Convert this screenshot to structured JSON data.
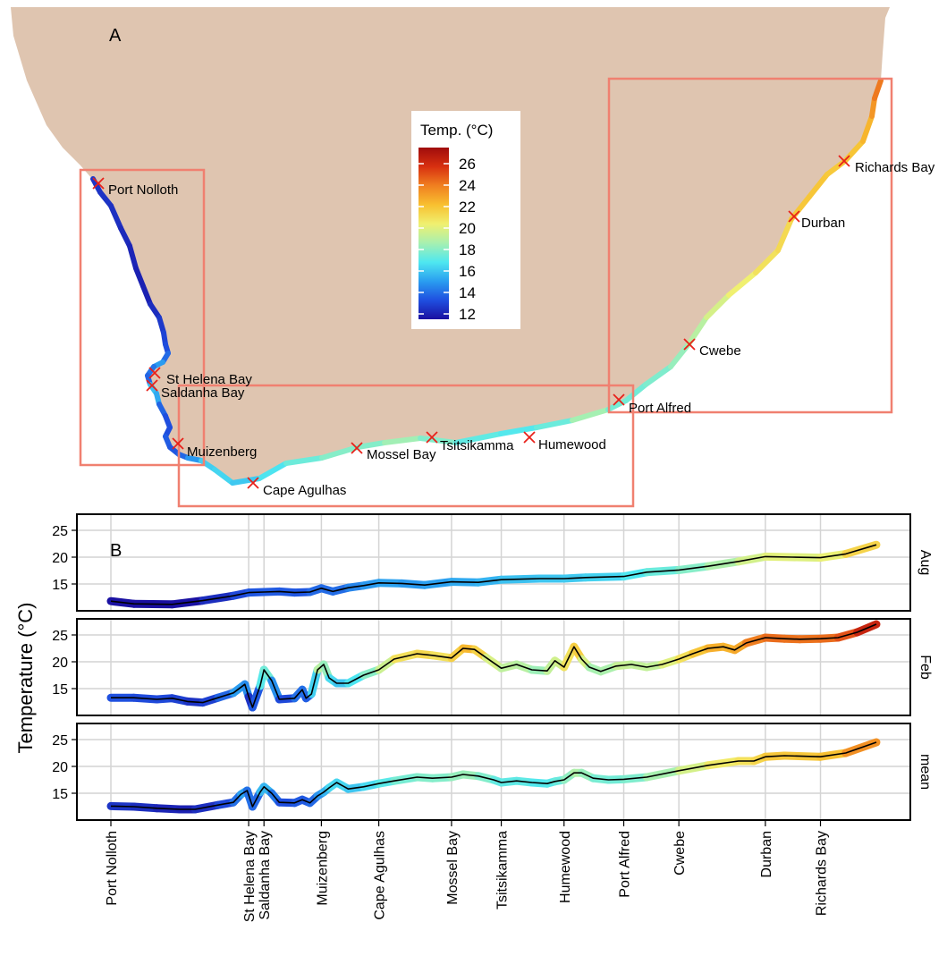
{
  "map": {
    "panel_label": "A",
    "legend": {
      "title": "Temp. (°C)",
      "ticks": [
        26,
        24,
        22,
        20,
        18,
        16,
        14,
        12
      ],
      "range": [
        11.5,
        27.5
      ],
      "colors": [
        "#1a0fa0",
        "#1f4fe0",
        "#2a9ef0",
        "#4fe8f0",
        "#a8f0b0",
        "#f0f070",
        "#f8c030",
        "#f08020",
        "#d83010",
        "#a00c0c"
      ]
    },
    "sites": [
      {
        "name": "Port Nolloth"
      },
      {
        "name": "St Helena Bay"
      },
      {
        "name": "Saldanha Bay"
      },
      {
        "name": "Muizenberg"
      },
      {
        "name": "Cape Agulhas"
      },
      {
        "name": "Mossel Bay"
      },
      {
        "name": "Tsitsikamma"
      },
      {
        "name": "Humewood"
      },
      {
        "name": "Port Alfred"
      },
      {
        "name": "Cwebe"
      },
      {
        "name": "Durban"
      },
      {
        "name": "Richards Bay"
      }
    ],
    "land_color": "#dfc5b0",
    "marker_color": "#e8201a",
    "box_color": "#f08070"
  },
  "chart_data": {
    "type": "line",
    "panel_label": "B",
    "ylabel": "Temperature (°C)",
    "yticks": [
      15,
      20,
      25
    ],
    "ylim": [
      10,
      28
    ],
    "xlim": [
      0,
      1000
    ],
    "grid": true,
    "x_ticks": [
      {
        "label": "Port Nolloth",
        "x": 0
      },
      {
        "label": "St Helena Bay",
        "x": 180
      },
      {
        "label": "Saldanha Bay",
        "x": 200
      },
      {
        "label": "Muizenberg",
        "x": 275
      },
      {
        "label": "Cape Agulhas",
        "x": 350
      },
      {
        "label": "Mossel Bay",
        "x": 445
      },
      {
        "label": "Tsitsikamma",
        "x": 510
      },
      {
        "label": "Humewood",
        "x": 592
      },
      {
        "label": "Port Alfred",
        "x": 670
      },
      {
        "label": "Cwebe",
        "x": 742
      },
      {
        "label": "Durban",
        "x": 855
      },
      {
        "label": "Richards Bay",
        "x": 927
      }
    ],
    "panels": [
      {
        "strip": "Aug",
        "x": [
          0,
          30,
          80,
          120,
          160,
          180,
          200,
          220,
          240,
          260,
          275,
          290,
          310,
          330,
          350,
          380,
          410,
          445,
          480,
          510,
          560,
          592,
          620,
          670,
          700,
          742,
          780,
          820,
          855,
          890,
          927,
          960,
          1000
        ],
        "y": [
          11.8,
          11.3,
          11.2,
          11.9,
          12.8,
          13.4,
          13.5,
          13.6,
          13.4,
          13.5,
          14.2,
          13.6,
          14.3,
          14.7,
          15.2,
          15.1,
          14.8,
          15.4,
          15.3,
          15.8,
          16.0,
          16.0,
          16.2,
          16.4,
          17.2,
          17.6,
          18.3,
          19.2,
          20.1,
          20.0,
          19.9,
          20.6,
          22.3
        ]
      },
      {
        "strip": "Feb",
        "x": [
          0,
          30,
          60,
          80,
          100,
          120,
          140,
          160,
          175,
          180,
          185,
          195,
          200,
          210,
          220,
          240,
          250,
          255,
          262,
          270,
          278,
          285,
          295,
          310,
          330,
          350,
          370,
          400,
          420,
          445,
          460,
          475,
          490,
          510,
          530,
          550,
          570,
          580,
          592,
          605,
          615,
          625,
          640,
          660,
          680,
          700,
          720,
          742,
          760,
          780,
          800,
          815,
          830,
          855,
          880,
          900,
          927,
          950,
          975,
          1000
        ],
        "y": [
          13.3,
          13.3,
          13.0,
          13.2,
          12.6,
          12.4,
          13.3,
          14.2,
          15.8,
          13.5,
          11.5,
          15.5,
          18.5,
          16.5,
          13.0,
          13.2,
          14.8,
          13.2,
          14.0,
          18.5,
          19.5,
          17.0,
          16.0,
          16.0,
          17.5,
          18.5,
          20.5,
          21.5,
          21.2,
          20.7,
          22.5,
          22.3,
          20.8,
          18.8,
          19.5,
          18.5,
          18.3,
          20.2,
          19.0,
          22.8,
          20.5,
          19.0,
          18.2,
          19.2,
          19.5,
          19.0,
          19.5,
          20.5,
          21.5,
          22.5,
          22.8,
          22.2,
          23.5,
          24.5,
          24.3,
          24.2,
          24.3,
          24.5,
          25.5,
          27.0
        ]
      },
      {
        "strip": "mean",
        "x": [
          0,
          30,
          60,
          90,
          110,
          140,
          160,
          170,
          178,
          185,
          195,
          200,
          210,
          220,
          240,
          250,
          260,
          270,
          278,
          285,
          295,
          310,
          330,
          350,
          370,
          400,
          420,
          445,
          460,
          480,
          500,
          510,
          530,
          550,
          570,
          580,
          592,
          605,
          615,
          630,
          650,
          670,
          700,
          742,
          780,
          820,
          840,
          855,
          880,
          927,
          960,
          1000
        ],
        "y": [
          12.6,
          12.5,
          12.2,
          12.0,
          12.0,
          12.8,
          13.3,
          14.8,
          15.5,
          12.5,
          15.2,
          16.2,
          15.0,
          13.3,
          13.2,
          13.8,
          13.2,
          14.5,
          15.2,
          16.0,
          17.0,
          15.8,
          16.2,
          16.8,
          17.3,
          18.0,
          17.8,
          18.0,
          18.5,
          18.2,
          17.5,
          17.0,
          17.3,
          17.0,
          16.8,
          17.2,
          17.5,
          18.8,
          18.8,
          17.8,
          17.5,
          17.6,
          18.0,
          19.2,
          20.2,
          21.0,
          21.0,
          21.8,
          22.0,
          21.8,
          22.5,
          24.5
        ]
      }
    ],
    "colorscale": [
      "#1a0fa0",
      "#1f4fe0",
      "#2a9ef0",
      "#4fe8f0",
      "#a8f0b0",
      "#f0f070",
      "#f8c030",
      "#f08020",
      "#d83010",
      "#a00c0c"
    ]
  }
}
